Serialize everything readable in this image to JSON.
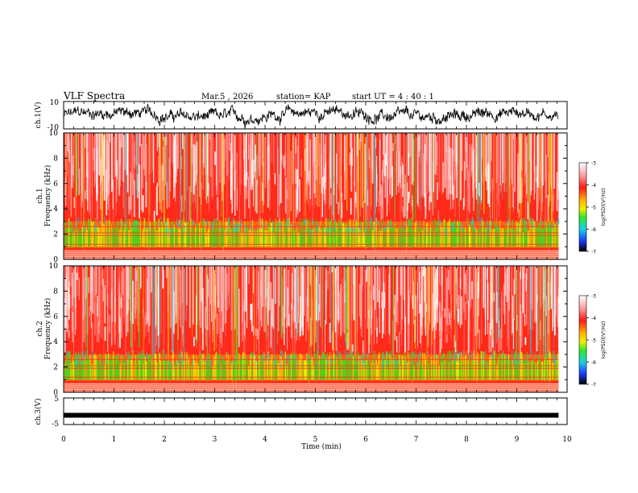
{
  "header": {
    "title": "VLF Spectra",
    "date": "Mar.5 , 2026",
    "station": "station= KAP",
    "start_ut": "start UT = 4 : 40 : 1"
  },
  "chart_data": [
    {
      "type": "line",
      "name": "ch1-waveform",
      "ylabel": "ch.1(V)",
      "ylim": [
        -10,
        10
      ],
      "yticks": [
        "10",
        "-10"
      ],
      "xlim": [
        0,
        10
      ],
      "description_values": "noisy voltage trace roughly between -8 and 8 V"
    },
    {
      "type": "heatmap",
      "name": "ch1-spectrogram",
      "ylabel": "ch.1 Frequency (kHz)",
      "ylim": [
        0,
        10
      ],
      "yticks": [
        "0",
        "2",
        "4",
        "6",
        "8",
        "10"
      ],
      "xlim": [
        0,
        10
      ],
      "colorbar": {
        "label": "log(PSD)(V²/Hz)",
        "range": [
          -7,
          -3
        ],
        "ticks": [
          "-3",
          "-4",
          "-5",
          "-6",
          "-7"
        ]
      }
    },
    {
      "type": "heatmap",
      "name": "ch2-spectrogram",
      "ylabel": "ch.2 Frequency (kHz)",
      "ylim": [
        0,
        10
      ],
      "yticks": [
        "0",
        "2",
        "4",
        "6",
        "8",
        "10"
      ],
      "xlim": [
        0,
        10
      ],
      "colorbar": {
        "label": "log(PSD)(V²/Hz)",
        "range": [
          -7,
          -3
        ],
        "ticks": [
          "-3",
          "-4",
          "-5",
          "-6",
          "-7"
        ]
      }
    },
    {
      "type": "line",
      "name": "ch3-waveform",
      "ylabel": "ch.3(V)",
      "ylim": [
        -5,
        5
      ],
      "yticks": [
        "5",
        "-5"
      ],
      "xlim": [
        0,
        10
      ],
      "level": -1.5
    }
  ],
  "xaxis": {
    "label": "Time (min)",
    "ticks": [
      "0",
      "1",
      "2",
      "3",
      "4",
      "5",
      "6",
      "7",
      "8",
      "9",
      "10"
    ],
    "data_end": 9.83
  },
  "colors": {
    "red": "#ff2a1a",
    "orange": "#ff8a1a",
    "yellow": "#f5f000",
    "green": "#33e61a",
    "cyan": "#1ad2e6",
    "blue": "#1a3cff",
    "black": "#000000",
    "white": "#ffffff"
  }
}
